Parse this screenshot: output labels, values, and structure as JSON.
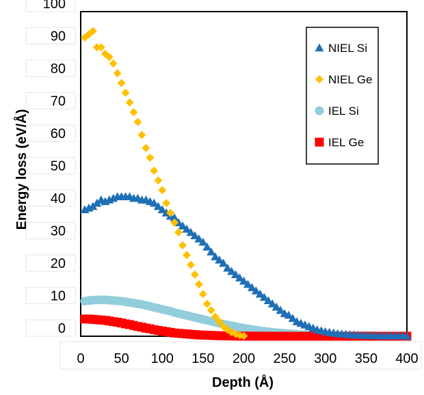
{
  "chart_data": {
    "type": "scatter",
    "xlabel": "Depth (Å)",
    "ylabel": "Energy loss (eV/Å)",
    "xlim": [
      0,
      400
    ],
    "ylim": [
      0,
      100
    ],
    "x_ticks": [
      "0",
      "50",
      "100",
      "150",
      "200",
      "250",
      "300",
      "350",
      "400"
    ],
    "y_ticks": [
      "0",
      "10",
      "20",
      "30",
      "40",
      "50",
      "60",
      "70",
      "80",
      "90",
      "100"
    ],
    "grid": false,
    "legend_position": "top-right",
    "series": [
      {
        "name": "NIEL Si",
        "marker": "triangle",
        "color": "#1f6fb5",
        "x": [
          5,
          10,
          15,
          20,
          25,
          30,
          35,
          40,
          45,
          50,
          55,
          60,
          65,
          70,
          75,
          80,
          85,
          90,
          95,
          100,
          105,
          110,
          115,
          120,
          125,
          130,
          135,
          140,
          145,
          150,
          155,
          160,
          165,
          170,
          175,
          180,
          185,
          190,
          195,
          200,
          205,
          210,
          215,
          220,
          225,
          230,
          235,
          240,
          245,
          250,
          255,
          260,
          265,
          270,
          275,
          280,
          285,
          290,
          295,
          300,
          305,
          310,
          315,
          320,
          325,
          330,
          335,
          340,
          345,
          350,
          355,
          360,
          365,
          370,
          375,
          380,
          385,
          390,
          395,
          400
        ],
        "y": [
          39,
          39.5,
          40,
          41,
          42,
          41.5,
          42,
          42.5,
          43,
          43,
          43,
          43,
          42.5,
          42.5,
          42,
          42,
          41.5,
          41,
          40,
          39,
          38,
          37,
          36.5,
          35,
          34,
          33,
          32,
          31,
          30,
          29,
          27.5,
          26,
          24.5,
          23.5,
          22.5,
          21,
          20,
          19,
          18,
          17,
          16,
          15,
          14,
          13,
          12,
          11,
          10,
          9,
          8,
          7,
          6.5,
          5.5,
          4.5,
          4,
          3.5,
          3,
          2.5,
          2,
          1.7,
          1.4,
          1.2,
          1,
          0.8,
          0.7,
          0.6,
          0.5,
          0.4,
          0.3,
          0.3,
          0.2,
          0.2,
          0.2,
          0.1,
          0.1,
          0.1,
          0.1,
          0.1,
          0.1,
          0.1,
          0
        ]
      },
      {
        "name": "NIEL Ge",
        "marker": "diamond",
        "color": "#ffc000",
        "x": [
          5,
          10,
          15,
          20,
          25,
          30,
          35,
          40,
          45,
          50,
          55,
          60,
          65,
          70,
          75,
          80,
          85,
          90,
          95,
          100,
          105,
          110,
          115,
          120,
          125,
          130,
          135,
          140,
          145,
          150,
          155,
          160,
          165,
          170,
          175,
          180,
          185,
          190,
          195,
          200
        ],
        "y": [
          92,
          93,
          94,
          89,
          89,
          87,
          86,
          84,
          81,
          78,
          75,
          72,
          69,
          66,
          62,
          58,
          55,
          51,
          48,
          45,
          41,
          38,
          35,
          32,
          28,
          25,
          22,
          19,
          16,
          13,
          10,
          8,
          6,
          4.5,
          3,
          2,
          1.2,
          0.7,
          0.3,
          0.1
        ]
      },
      {
        "name": "IEL Si",
        "marker": "circle",
        "color": "#92cddc",
        "x": [
          5,
          10,
          15,
          20,
          25,
          30,
          35,
          40,
          45,
          50,
          55,
          60,
          65,
          70,
          75,
          80,
          85,
          90,
          95,
          100,
          105,
          110,
          115,
          120,
          125,
          130,
          135,
          140,
          145,
          150,
          155,
          160,
          165,
          170,
          175,
          180,
          185,
          190,
          195,
          200,
          205,
          210,
          215,
          220,
          225,
          230,
          235,
          240,
          245,
          250,
          255,
          260,
          265,
          270,
          275,
          280,
          285,
          290,
          295,
          300,
          305,
          310,
          315,
          320,
          325,
          330,
          335,
          340,
          345,
          350,
          355,
          360,
          365,
          370,
          375,
          380,
          385,
          390,
          395,
          400
        ],
        "y": [
          10.8,
          11,
          11.1,
          11.2,
          11.2,
          11.2,
          11.1,
          11,
          10.9,
          10.8,
          10.6,
          10.4,
          10.2,
          10,
          9.8,
          9.5,
          9.2,
          8.9,
          8.6,
          8.3,
          8,
          7.7,
          7.3,
          7,
          6.7,
          6.4,
          6.1,
          5.8,
          5.5,
          5.2,
          4.9,
          4.6,
          4.3,
          4,
          3.7,
          3.5,
          3.2,
          3,
          2.7,
          2.5,
          2.3,
          2.1,
          1.9,
          1.7,
          1.5,
          1.4,
          1.2,
          1.1,
          1,
          0.9,
          0.8,
          0.7,
          0.6,
          0.5,
          0.45,
          0.4,
          0.35,
          0.3,
          0.25,
          0.2,
          0.2,
          0.15,
          0.15,
          0.1,
          0.1,
          0.1,
          0.1,
          0.1,
          0.05,
          0.05,
          0.05,
          0.05,
          0.05,
          0.05,
          0.05,
          0.05,
          0.05,
          0.05,
          0.05,
          0
        ]
      },
      {
        "name": "IEL Ge",
        "marker": "square",
        "color": "#ff0000",
        "x": [
          5,
          10,
          15,
          20,
          25,
          30,
          35,
          40,
          45,
          50,
          55,
          60,
          65,
          70,
          75,
          80,
          85,
          90,
          95,
          100,
          105,
          110,
          115,
          120,
          125,
          130,
          135,
          140,
          145,
          150,
          155,
          160,
          165,
          170,
          175,
          180,
          185,
          190,
          195,
          200,
          205,
          210,
          215,
          220,
          225,
          230,
          235,
          240,
          245,
          250,
          255,
          260,
          265,
          270,
          275,
          280,
          285,
          290,
          295,
          300,
          305,
          310,
          315,
          320,
          325,
          330,
          335,
          340,
          345,
          350,
          355,
          360,
          365,
          370,
          375,
          380,
          385,
          390,
          395,
          400
        ],
        "y": [
          5.3,
          5.3,
          5.2,
          5.1,
          5,
          4.9,
          4.7,
          4.5,
          4.3,
          4.1,
          3.8,
          3.6,
          3.3,
          3,
          2.8,
          2.5,
          2.3,
          2,
          1.8,
          1.6,
          1.4,
          1.2,
          1,
          0.9,
          0.8,
          0.7,
          0.6,
          0.5,
          0.4,
          0.35,
          0.3,
          0.25,
          0.2,
          0.15,
          0.12,
          0.1,
          0.08,
          0.06,
          0.05,
          0.04,
          0.03,
          0.02,
          0.02,
          0.01,
          0.01,
          0.01,
          0,
          0,
          0,
          0,
          0,
          0,
          0,
          0,
          0,
          0,
          0,
          0,
          0,
          0,
          0,
          0,
          0,
          0,
          0,
          0,
          0,
          0,
          0,
          0,
          0,
          0,
          0,
          0,
          0,
          0,
          0,
          0,
          0,
          0
        ]
      }
    ]
  }
}
